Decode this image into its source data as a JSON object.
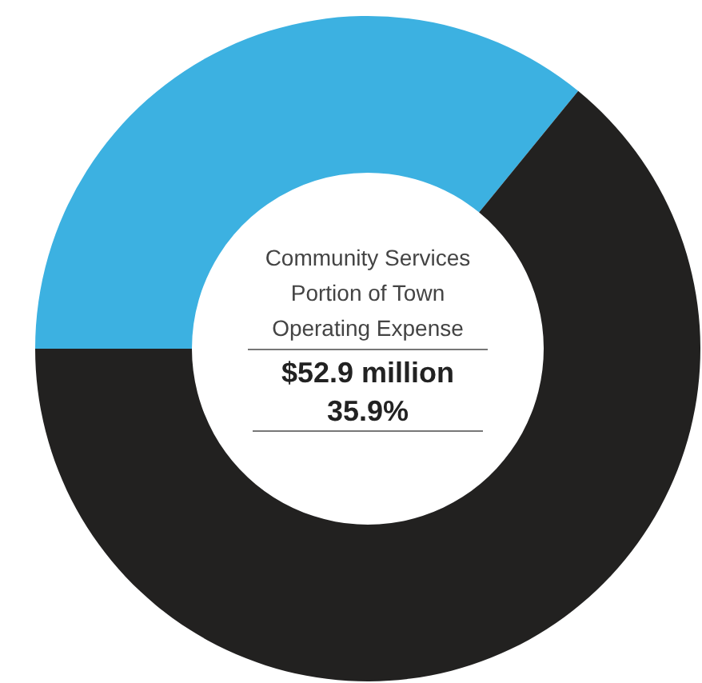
{
  "chart_data": {
    "type": "donut",
    "title": "Community Services Portion of Town Operating Expense",
    "categories": [
      null,
      null
    ],
    "values": [
      35.9,
      64.1
    ],
    "colors": [
      "#3cb1e1",
      "#222120"
    ],
    "annotations": [
      "$52.9 million",
      "35.9%"
    ]
  }
}
